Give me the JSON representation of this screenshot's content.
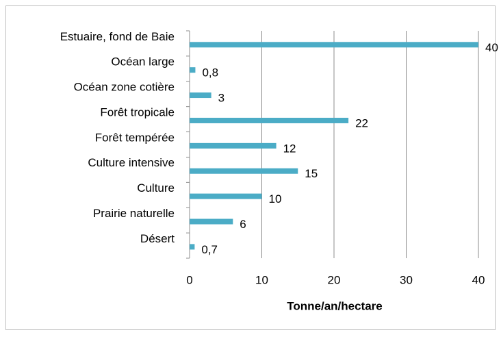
{
  "chart_data": {
    "type": "bar",
    "orientation": "horizontal",
    "categories": [
      "Estuaire, fond de Baie",
      "Océan large",
      "Océan zone cotière",
      "Forêt tropicale",
      "Forêt tempérée",
      "Culture intensive",
      "Culture",
      "Prairie naturelle",
      "Désert"
    ],
    "values": [
      40,
      0.8,
      3,
      22,
      12,
      15,
      10,
      6,
      0.7
    ],
    "value_labels": [
      "40",
      "0,8",
      "3",
      "22",
      "12",
      "15",
      "10",
      "6",
      "0,7"
    ],
    "color": "#4bacc6",
    "xlabel": "Tonne/an/hectare",
    "xlim": [
      0,
      40
    ],
    "xticks": [
      0,
      10,
      20,
      30,
      40
    ],
    "grid": true
  }
}
